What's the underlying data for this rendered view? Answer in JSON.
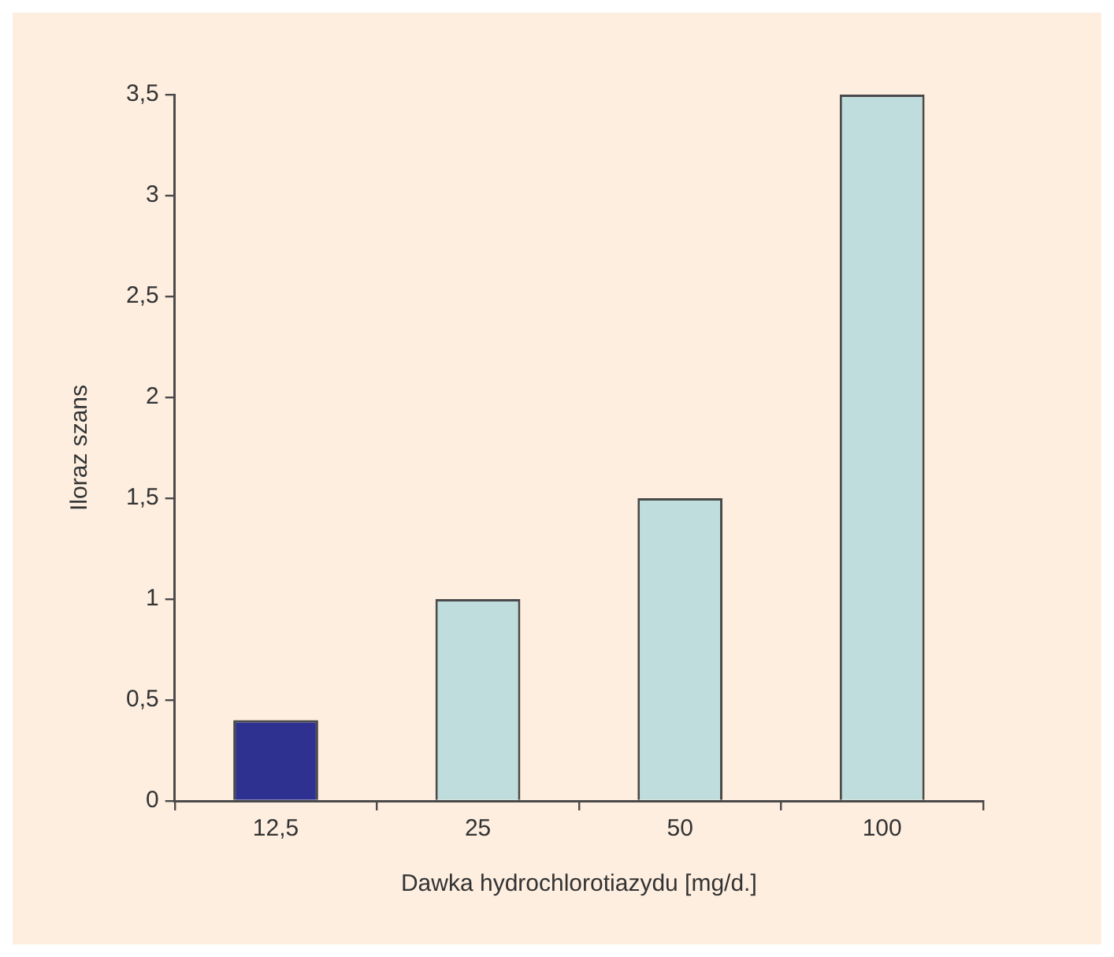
{
  "chart_data": {
    "type": "bar",
    "xlabel": "Dawka hydrochlorotiazydu [mg/d.]",
    "ylabel": "Iloraz szans",
    "categories": [
      "12,5",
      "25",
      "50",
      "100"
    ],
    "values": [
      0.4,
      1,
      1.5,
      3.5
    ],
    "colors": [
      "#2e3190",
      "#bfdddd",
      "#bfdddd",
      "#bfdddd"
    ],
    "ylim": [
      0,
      3.5
    ],
    "yticks": [
      0,
      {
        "value": 0.5,
        "label": "0,5"
      },
      1,
      {
        "value": 1.5,
        "label": "1,5"
      },
      2,
      {
        "value": 2.5,
        "label": "2,5"
      },
      3,
      {
        "value": 3.5,
        "label": "3,5"
      }
    ],
    "grid": false,
    "legend": false
  }
}
